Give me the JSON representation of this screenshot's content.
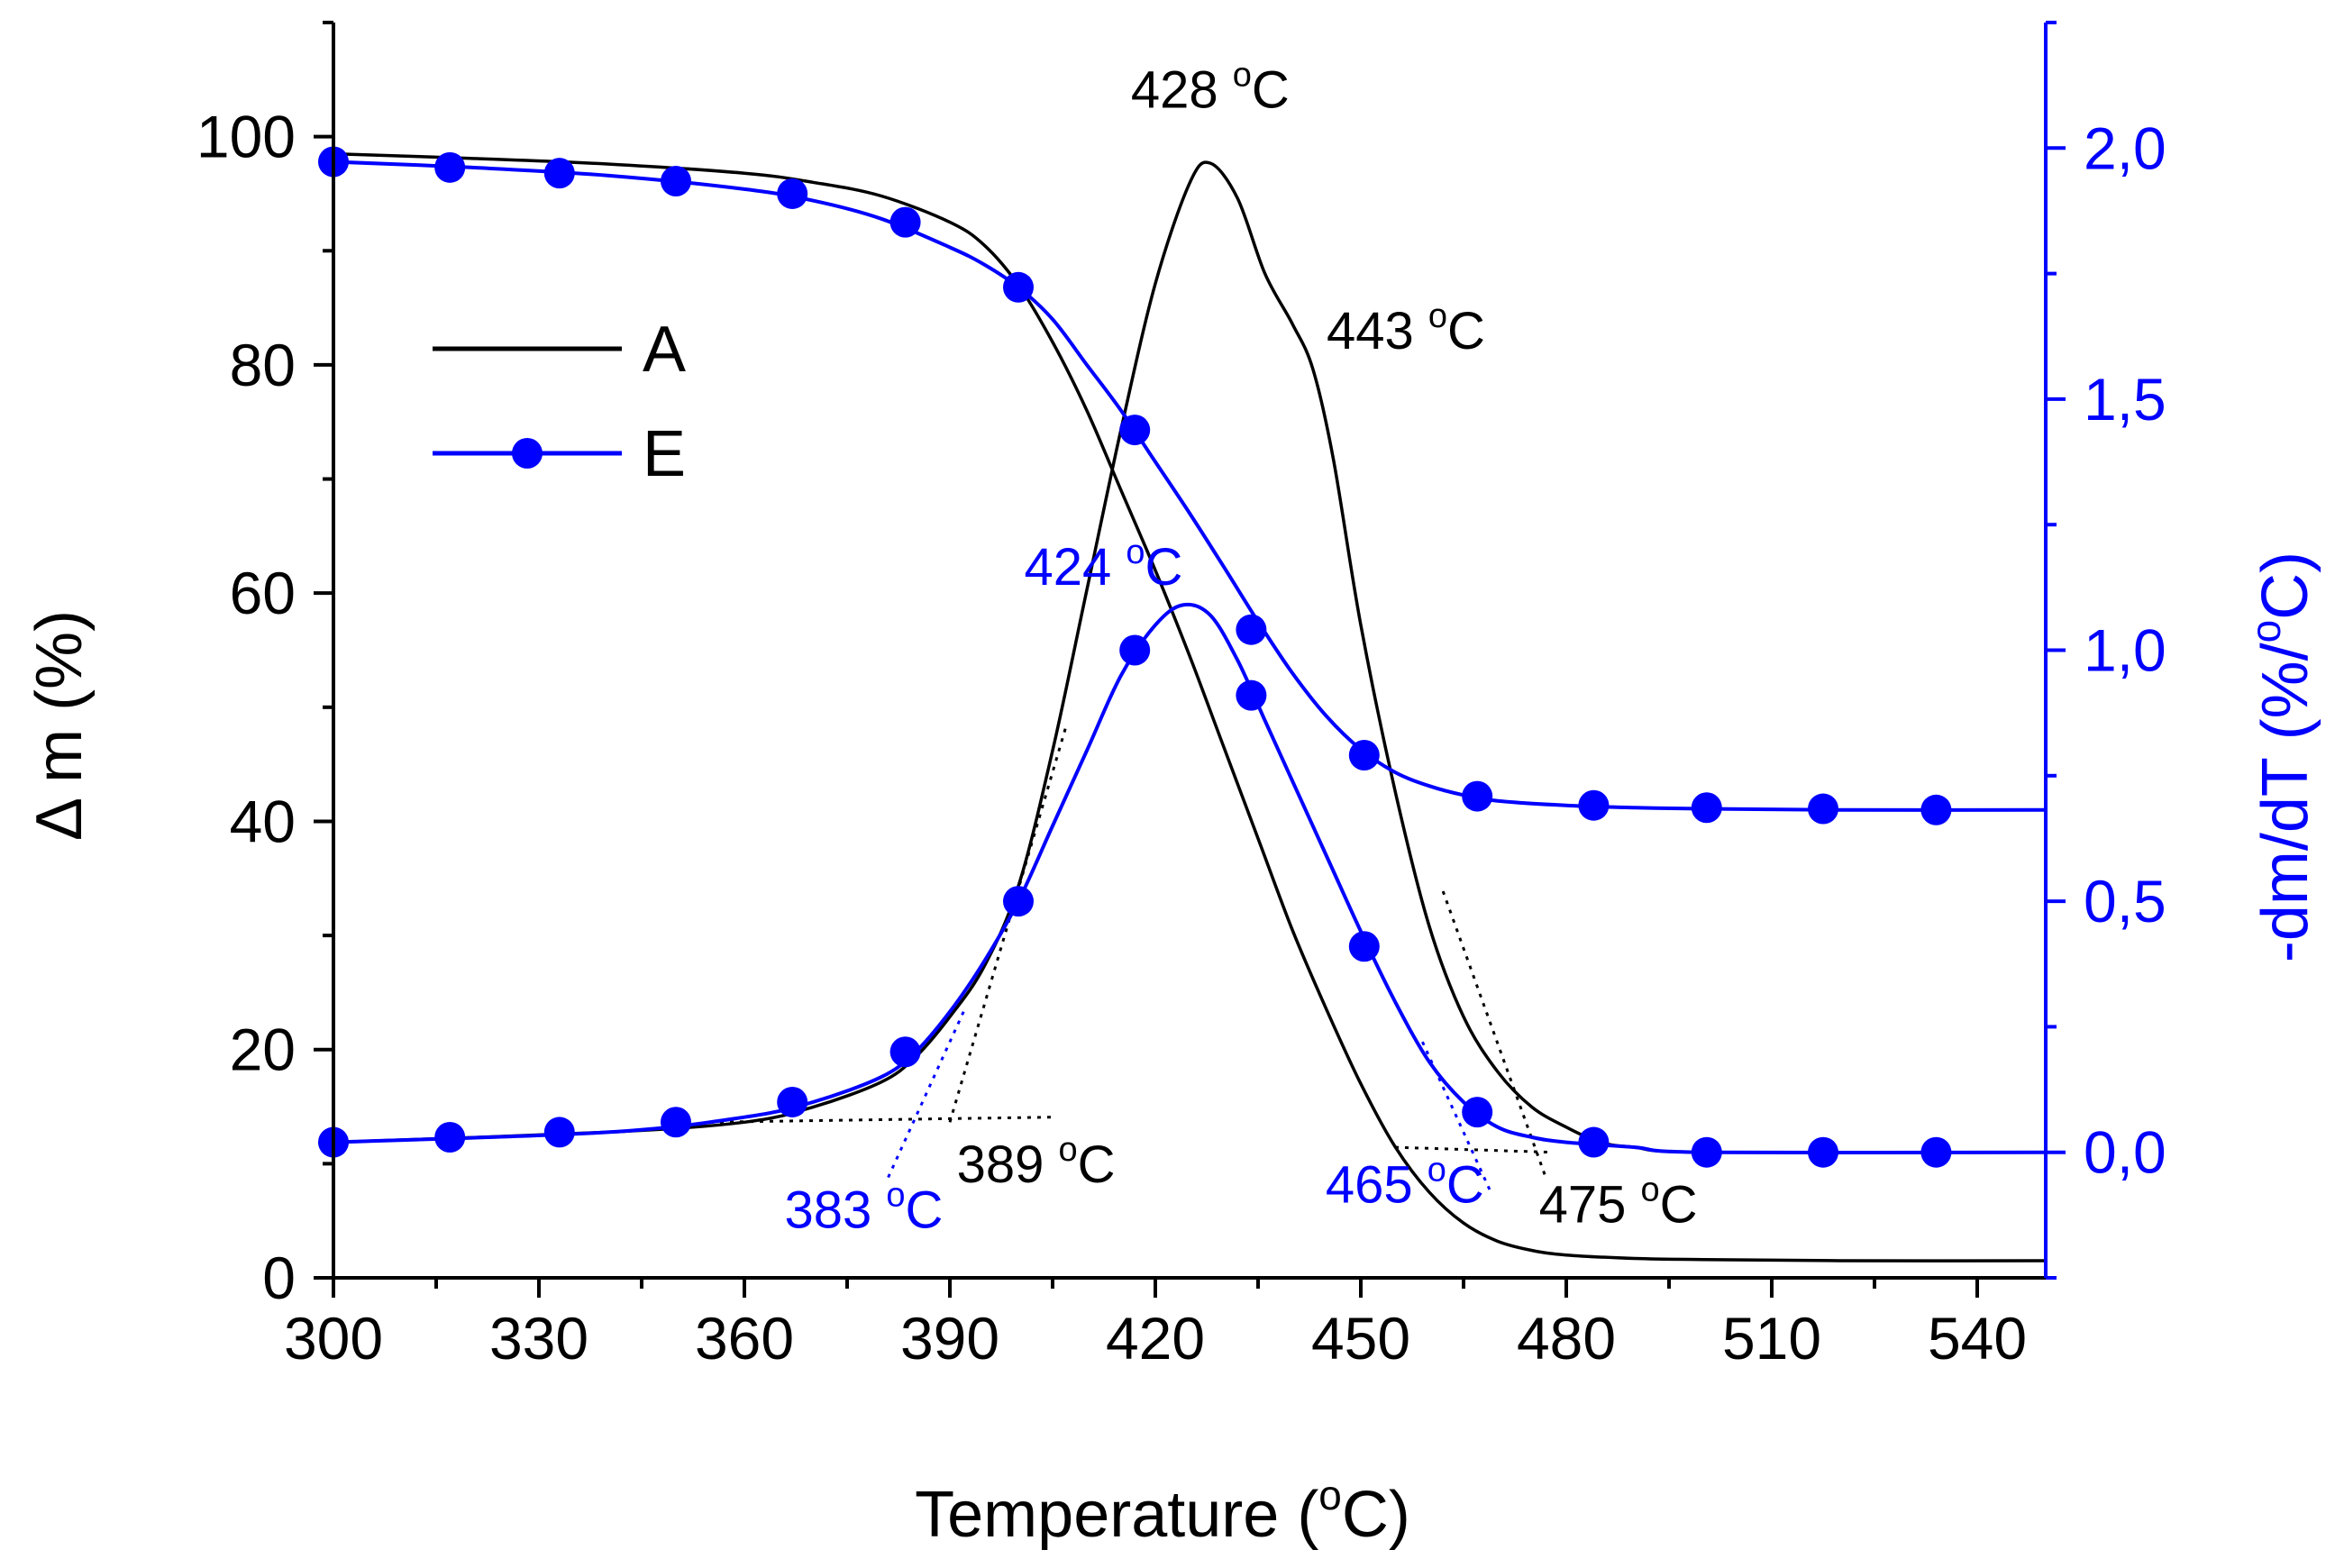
{
  "chart_data": {
    "type": "line",
    "xlabel": "Temperature (",
    "xlabel_sup": "o",
    "xlabel_end": "C)",
    "ylabel_left": "Δ m (%)",
    "ylabel_right": "-dm/dT (%/",
    "ylabel_right_sup": "o",
    "ylabel_right_end": "C)",
    "xlim": [
      300,
      550
    ],
    "ylim_left": [
      0,
      110
    ],
    "ylim_right": [
      -0.25,
      2.25
    ],
    "xticks": [
      300,
      330,
      360,
      390,
      420,
      450,
      480,
      510,
      540
    ],
    "xtick_labels": [
      "300",
      "330",
      "360",
      "390",
      "420",
      "450",
      "480",
      "510",
      "540"
    ],
    "yticks_left": [
      0,
      20,
      40,
      60,
      80,
      100
    ],
    "ytick_labels_left": [
      "0",
      "20",
      "40",
      "60",
      "80",
      "100"
    ],
    "yticks_right": [
      0.0,
      0.5,
      1.0,
      1.5,
      2.0
    ],
    "ytick_labels_right": [
      "0,0",
      "0,5",
      "1,0",
      "1,5",
      "2,0"
    ],
    "colors": {
      "A": "#000000",
      "E": "#0000ff",
      "right_axis": "#0000ff"
    },
    "legend": {
      "placement": "upper-left",
      "entries": [
        "A",
        "E"
      ]
    },
    "series": [
      {
        "name": "A",
        "kind": "mass",
        "axis": "left",
        "x": [
          300,
          320,
          340,
          360,
          370,
          380,
          390,
          395,
          400,
          405,
          410,
          415,
          420,
          425,
          430,
          435,
          440,
          445,
          450,
          455,
          460,
          465,
          470,
          475,
          480,
          490,
          500,
          520,
          550
        ],
        "y": [
          98.5,
          98.1,
          97.6,
          96.8,
          96.0,
          94.8,
          92.5,
          90.5,
          87.0,
          82.0,
          76.0,
          69.0,
          62.0,
          54.5,
          46.5,
          38.5,
          30.5,
          23.5,
          17.0,
          11.5,
          7.5,
          4.8,
          3.2,
          2.4,
          2.0,
          1.7,
          1.6,
          1.5,
          1.5
        ]
      },
      {
        "name": "A",
        "kind": "dtg",
        "axis": "right",
        "x": [
          300,
          340,
          360,
          370,
          380,
          385,
          390,
          395,
          400,
          405,
          410,
          415,
          420,
          425,
          428,
          432,
          436,
          440,
          443,
          446,
          450,
          455,
          460,
          465,
          470,
          475,
          480,
          485,
          490,
          500,
          550
        ],
        "y": [
          0.02,
          0.04,
          0.06,
          0.09,
          0.14,
          0.19,
          0.27,
          0.37,
          0.53,
          0.8,
          1.12,
          1.44,
          1.73,
          1.93,
          1.97,
          1.9,
          1.75,
          1.65,
          1.56,
          1.38,
          1.05,
          0.72,
          0.45,
          0.27,
          0.16,
          0.09,
          0.05,
          0.02,
          0.01,
          0.0,
          0.0
        ]
      },
      {
        "name": "E",
        "kind": "mass",
        "axis": "left",
        "x": [
          300,
          320,
          340,
          360,
          370,
          380,
          390,
          395,
          400,
          405,
          410,
          415,
          420,
          425,
          430,
          435,
          440,
          445,
          450,
          455,
          460,
          465,
          470,
          480,
          490,
          500,
          520,
          550
        ],
        "y": [
          97.8,
          97.3,
          96.6,
          95.4,
          94.4,
          92.8,
          90.3,
          88.8,
          86.8,
          84.0,
          80.0,
          76.0,
          71.5,
          67.0,
          62.3,
          57.5,
          53.0,
          49.2,
          46.3,
          44.3,
          43.1,
          42.3,
          41.8,
          41.4,
          41.2,
          41.1,
          41.0,
          41.0
        ]
      },
      {
        "name": "E",
        "kind": "dtg",
        "axis": "right",
        "x": [
          300,
          340,
          360,
          370,
          380,
          385,
          390,
          395,
          400,
          405,
          410,
          415,
          420,
          424,
          428,
          432,
          436,
          440,
          445,
          450,
          455,
          460,
          465,
          470,
          475,
          480,
          490,
          500,
          550
        ],
        "y": [
          0.02,
          0.04,
          0.07,
          0.1,
          0.15,
          0.2,
          0.28,
          0.38,
          0.5,
          0.65,
          0.8,
          0.95,
          1.05,
          1.09,
          1.07,
          0.98,
          0.86,
          0.74,
          0.59,
          0.44,
          0.3,
          0.18,
          0.1,
          0.05,
          0.03,
          0.02,
          0.01,
          0.0,
          0.0
        ]
      }
    ],
    "markers_E_mass": {
      "x": [
        300,
        317,
        333,
        350,
        367,
        383.5,
        400,
        417,
        434,
        450.5,
        467,
        484,
        500.5,
        517.5,
        534
      ],
      "y": [
        97.8,
        97.3,
        96.8,
        96.1,
        95.0,
        92.5,
        86.8,
        74.3,
        56.8,
        45.8,
        42.2,
        41.4,
        41.2,
        41.1,
        41.0
      ]
    },
    "markers_E_dtg": {
      "x": [
        300,
        317,
        333,
        350,
        367,
        383.5,
        400,
        417,
        434,
        450.5,
        467,
        484,
        500.5,
        517.5,
        534
      ],
      "y": [
        0.02,
        0.03,
        0.04,
        0.06,
        0.1,
        0.2,
        0.5,
        1.0,
        0.91,
        0.41,
        0.08,
        0.02,
        0.0,
        0.0,
        0.0
      ]
    },
    "annotations": [
      {
        "text": "428 ",
        "sup": "o",
        "end": "C",
        "color": "black",
        "x": 428,
        "y": 2.08,
        "axis": "right",
        "anchor": "middle"
      },
      {
        "text": "443 ",
        "sup": "o",
        "end": "C",
        "color": "black",
        "x": 445,
        "y": 1.6,
        "axis": "right",
        "anchor": "start"
      },
      {
        "text": "424 ",
        "sup": "o",
        "end": "C",
        "color": "blue",
        "x": 424,
        "y": 1.13,
        "axis": "right",
        "anchor": "end"
      },
      {
        "text": "389 ",
        "sup": "o",
        "end": "C",
        "color": "black",
        "x": 391,
        "y": -0.06,
        "axis": "right",
        "anchor": "start"
      },
      {
        "text": "383 ",
        "sup": "o",
        "end": "C",
        "color": "blue",
        "x": 389,
        "y": -0.15,
        "axis": "right",
        "anchor": "end"
      },
      {
        "text": "465 ",
        "sup": "o",
        "end": "C",
        "color": "blue",
        "x": 468,
        "y": -0.1,
        "axis": "right",
        "anchor": "end"
      },
      {
        "text": "475 ",
        "sup": "o",
        "end": "C",
        "color": "black",
        "x": 476,
        "y": -0.14,
        "axis": "right",
        "anchor": "start"
      }
    ],
    "tangent_lines": [
      {
        "color": "black",
        "points": [
          [
            355,
            0.06
          ],
          [
            405,
            0.07
          ]
        ]
      },
      {
        "color": "black",
        "points": [
          [
            390,
            0.06
          ],
          [
            407,
            0.85
          ]
        ]
      },
      {
        "color": "blue",
        "points": [
          [
            381,
            -0.05
          ],
          [
            392,
            0.28
          ]
        ]
      },
      {
        "color": "black",
        "points": [
          [
            455,
            0.01
          ],
          [
            478,
            0.0
          ]
        ]
      },
      {
        "color": "black",
        "points": [
          [
            462,
            0.52
          ],
          [
            477,
            -0.05
          ]
        ]
      },
      {
        "color": "blue",
        "points": [
          [
            459,
            0.22
          ],
          [
            469,
            -0.08
          ]
        ]
      }
    ]
  }
}
